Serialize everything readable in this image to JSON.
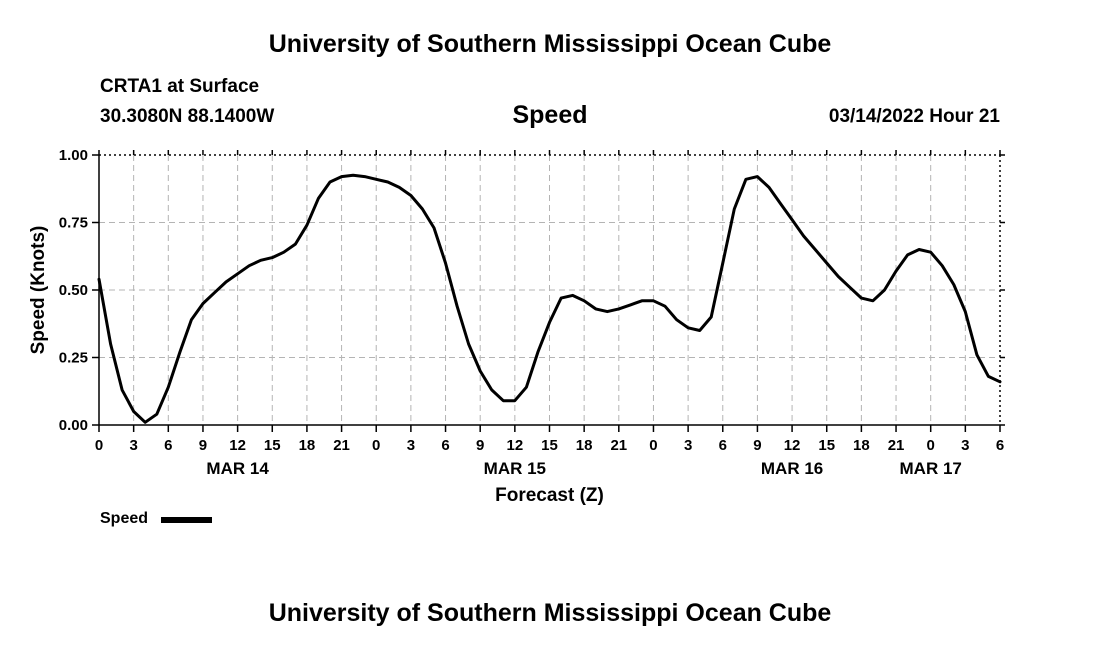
{
  "header": {
    "title": "University of Southern Mississippi Ocean Cube",
    "station": "CRTA1 at Surface",
    "coords": "30.3080N  88.1400W",
    "datetime": "03/14/2022 Hour 21"
  },
  "footer": {
    "title": "University of Southern Mississippi Ocean Cube"
  },
  "chart_data": {
    "type": "line",
    "title": "Speed",
    "xlabel": "Forecast (Z)",
    "ylabel": "Speed (Knots)",
    "ylim": [
      0,
      1
    ],
    "yticks": [
      "0.00",
      "0.25",
      "0.50",
      "0.75",
      "1.00"
    ],
    "xlim": [
      0,
      78
    ],
    "xticks": [
      "0",
      "3",
      "6",
      "9",
      "12",
      "15",
      "18",
      "21",
      "0",
      "3",
      "6",
      "9",
      "12",
      "15",
      "18",
      "21",
      "0",
      "3",
      "6",
      "9",
      "12",
      "15",
      "18",
      "21",
      "0",
      "3",
      "6"
    ],
    "date_labels": [
      {
        "label": "MAR 14",
        "hour": 12
      },
      {
        "label": "MAR 15",
        "hour": 36
      },
      {
        "label": "MAR 16",
        "hour": 60
      },
      {
        "label": "MAR 17",
        "hour": 72
      }
    ],
    "grid": true,
    "legend_position": "bottom-left",
    "series": [
      {
        "name": "Speed",
        "color": "#000000",
        "x": [
          0,
          1,
          2,
          3,
          4,
          5,
          6,
          7,
          8,
          9,
          10,
          11,
          12,
          13,
          14,
          15,
          16,
          17,
          18,
          19,
          20,
          21,
          22,
          23,
          24,
          25,
          26,
          27,
          28,
          29,
          30,
          31,
          32,
          33,
          34,
          35,
          36,
          37,
          38,
          39,
          40,
          41,
          42,
          43,
          44,
          45,
          46,
          47,
          48,
          49,
          50,
          51,
          52,
          53,
          54,
          55,
          56,
          57,
          58,
          59,
          60,
          61,
          62,
          63,
          64,
          65,
          66,
          67,
          68,
          69,
          70,
          71,
          72,
          73,
          74,
          75,
          76,
          77,
          78
        ],
        "values": [
          0.54,
          0.3,
          0.13,
          0.05,
          0.01,
          0.04,
          0.14,
          0.27,
          0.39,
          0.45,
          0.49,
          0.53,
          0.56,
          0.59,
          0.61,
          0.62,
          0.64,
          0.67,
          0.74,
          0.84,
          0.9,
          0.92,
          0.925,
          0.92,
          0.91,
          0.9,
          0.88,
          0.85,
          0.8,
          0.73,
          0.6,
          0.44,
          0.3,
          0.2,
          0.13,
          0.09,
          0.09,
          0.14,
          0.27,
          0.38,
          0.47,
          0.48,
          0.46,
          0.43,
          0.42,
          0.43,
          0.445,
          0.46,
          0.46,
          0.44,
          0.39,
          0.36,
          0.35,
          0.4,
          0.6,
          0.8,
          0.91,
          0.92,
          0.88,
          0.82,
          0.76,
          0.7,
          0.65,
          0.6,
          0.55,
          0.51,
          0.47,
          0.46,
          0.5,
          0.57,
          0.63,
          0.65,
          0.64,
          0.59,
          0.52,
          0.42,
          0.26,
          0.18,
          0.16
        ]
      }
    ]
  }
}
